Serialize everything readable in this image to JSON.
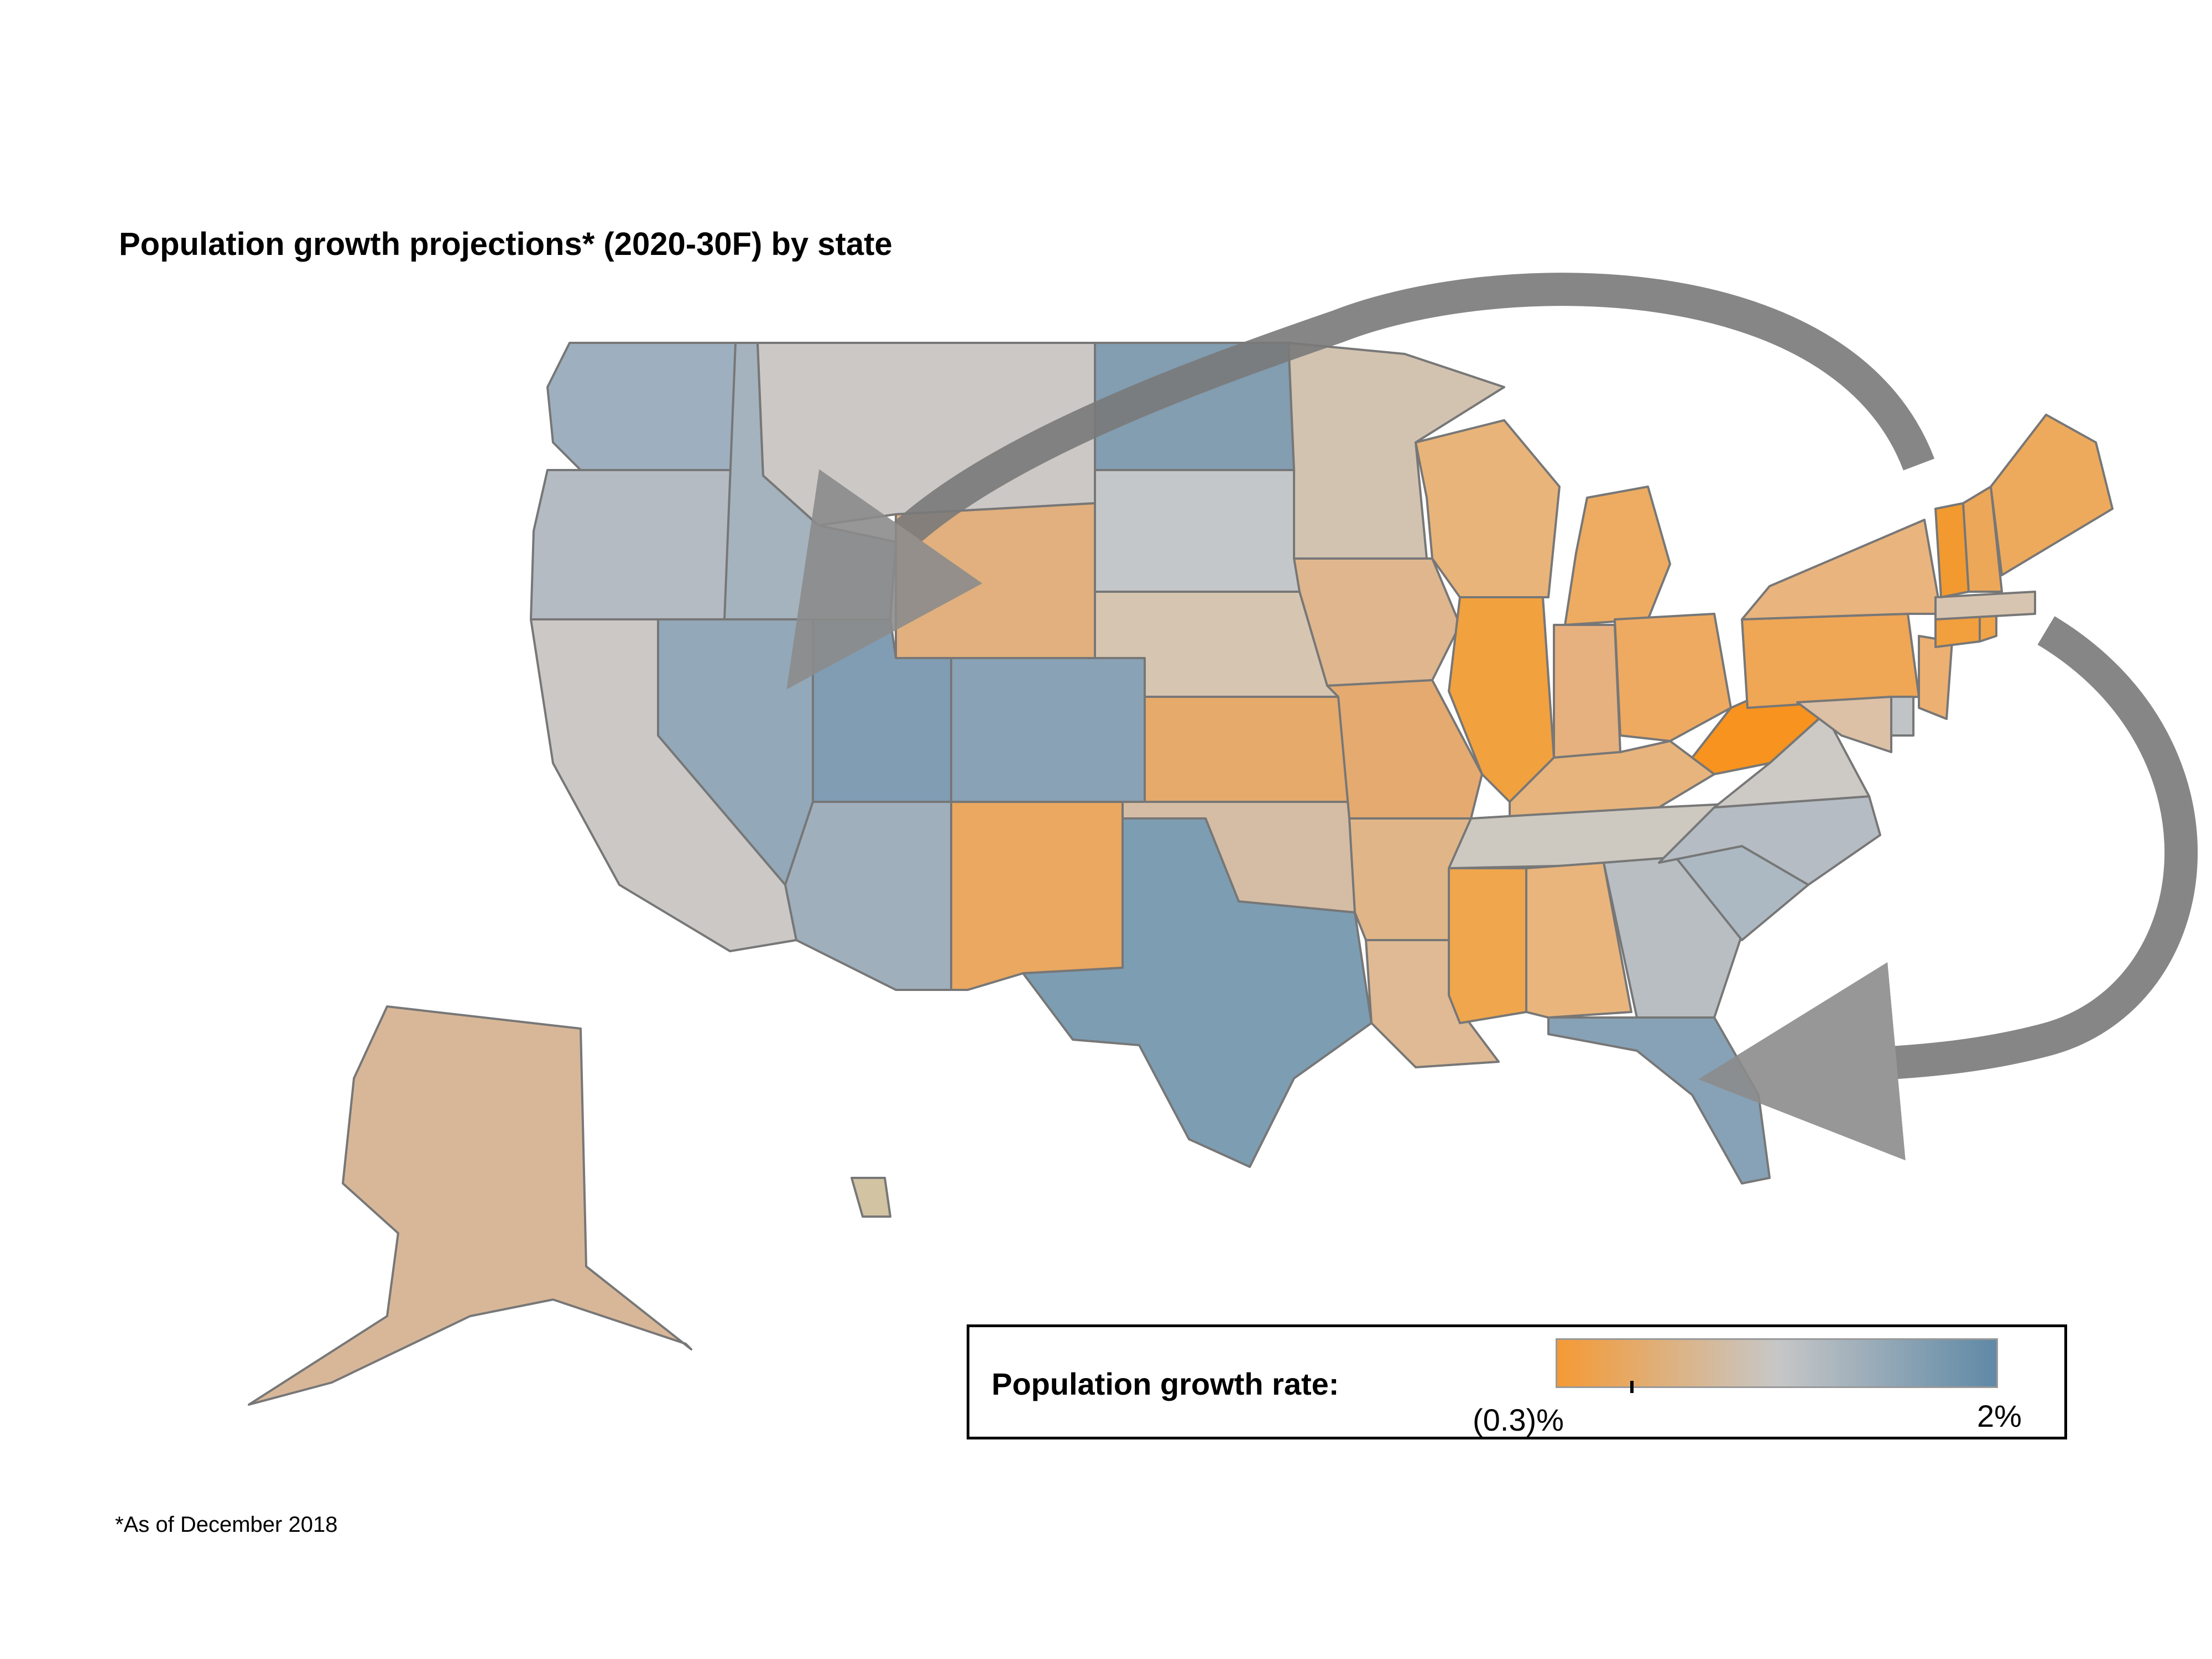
{
  "title": "Population growth projections* (2020-30F) by state",
  "footnote": "*As of December 2018",
  "legend": {
    "title": "Population growth rate:",
    "min_label": "(0.3)%",
    "max_label": "2%",
    "min_value": -0.3,
    "max_value": 2.0,
    "marker_value": 0.8,
    "color_low": "#f59a35",
    "color_mid": "#c7c7c7",
    "color_high": "#5f89a6"
  },
  "map": {
    "arrows_color": "#707070",
    "arrows": [
      "northeast-to-west",
      "northeast-to-southeast"
    ],
    "states": [
      {
        "code": "WA",
        "color": "#9eb0bf"
      },
      {
        "code": "OR",
        "color": "#b4bbc3"
      },
      {
        "code": "CA",
        "color": "#cbc8c6"
      },
      {
        "code": "ID",
        "color": "#a4b3bd"
      },
      {
        "code": "NV",
        "color": "#93a8b8"
      },
      {
        "code": "MT",
        "color": "#ccc8c6"
      },
      {
        "code": "WY",
        "color": "#e1b07e"
      },
      {
        "code": "UT",
        "color": "#819db4"
      },
      {
        "code": "AZ",
        "color": "#a0afbc"
      },
      {
        "code": "CO",
        "color": "#8aa2b5"
      },
      {
        "code": "NM",
        "color": "#eaa860"
      },
      {
        "code": "ND",
        "color": "#839db1"
      },
      {
        "code": "SD",
        "color": "#c4c7c9"
      },
      {
        "code": "NE",
        "color": "#d6c6b1"
      },
      {
        "code": "KS",
        "color": "#e6aa6b"
      },
      {
        "code": "OK",
        "color": "#d5bca4"
      },
      {
        "code": "TX",
        "color": "#7d9db3"
      },
      {
        "code": "MN",
        "color": "#d2c3b0"
      },
      {
        "code": "IA",
        "color": "#dfb68e"
      },
      {
        "code": "MO",
        "color": "#e4aa70"
      },
      {
        "code": "AR",
        "color": "#e0b688"
      },
      {
        "code": "LA",
        "color": "#dfba94"
      },
      {
        "code": "WI",
        "color": "#e9b47a"
      },
      {
        "code": "IL",
        "color": "#f2a13f"
      },
      {
        "code": "MI",
        "color": "#edac62"
      },
      {
        "code": "IN",
        "color": "#e6b17f"
      },
      {
        "code": "OH",
        "color": "#eeaa61"
      },
      {
        "code": "KY",
        "color": "#e8b47d"
      },
      {
        "code": "TN",
        "color": "#cdc9c0"
      },
      {
        "code": "MS",
        "color": "#f0a64c"
      },
      {
        "code": "AL",
        "color": "#e9b57d"
      },
      {
        "code": "GA",
        "color": "#b8bec2"
      },
      {
        "code": "FL",
        "color": "#87a2b6"
      },
      {
        "code": "SC",
        "color": "#adb9c2"
      },
      {
        "code": "NC",
        "color": "#b6bcc3"
      },
      {
        "code": "VA",
        "color": "#cdcac6"
      },
      {
        "code": "WV",
        "color": "#f7931e"
      },
      {
        "code": "PA",
        "color": "#efa655"
      },
      {
        "code": "NY",
        "color": "#e9b47e"
      },
      {
        "code": "NJ",
        "color": "#ecb073"
      },
      {
        "code": "MD",
        "color": "#dcc1a6"
      },
      {
        "code": "DE",
        "color": "#c0c4c7"
      },
      {
        "code": "CT",
        "color": "#f29f3d"
      },
      {
        "code": "RI",
        "color": "#f1a348"
      },
      {
        "code": "MA",
        "color": "#d7c5b1"
      },
      {
        "code": "VT",
        "color": "#f29a30"
      },
      {
        "code": "NH",
        "color": "#eda758"
      },
      {
        "code": "ME",
        "color": "#eeaa5c"
      },
      {
        "code": "AK",
        "color": "#d8b799"
      },
      {
        "code": "HI",
        "color": "#d2c3a3"
      }
    ]
  }
}
